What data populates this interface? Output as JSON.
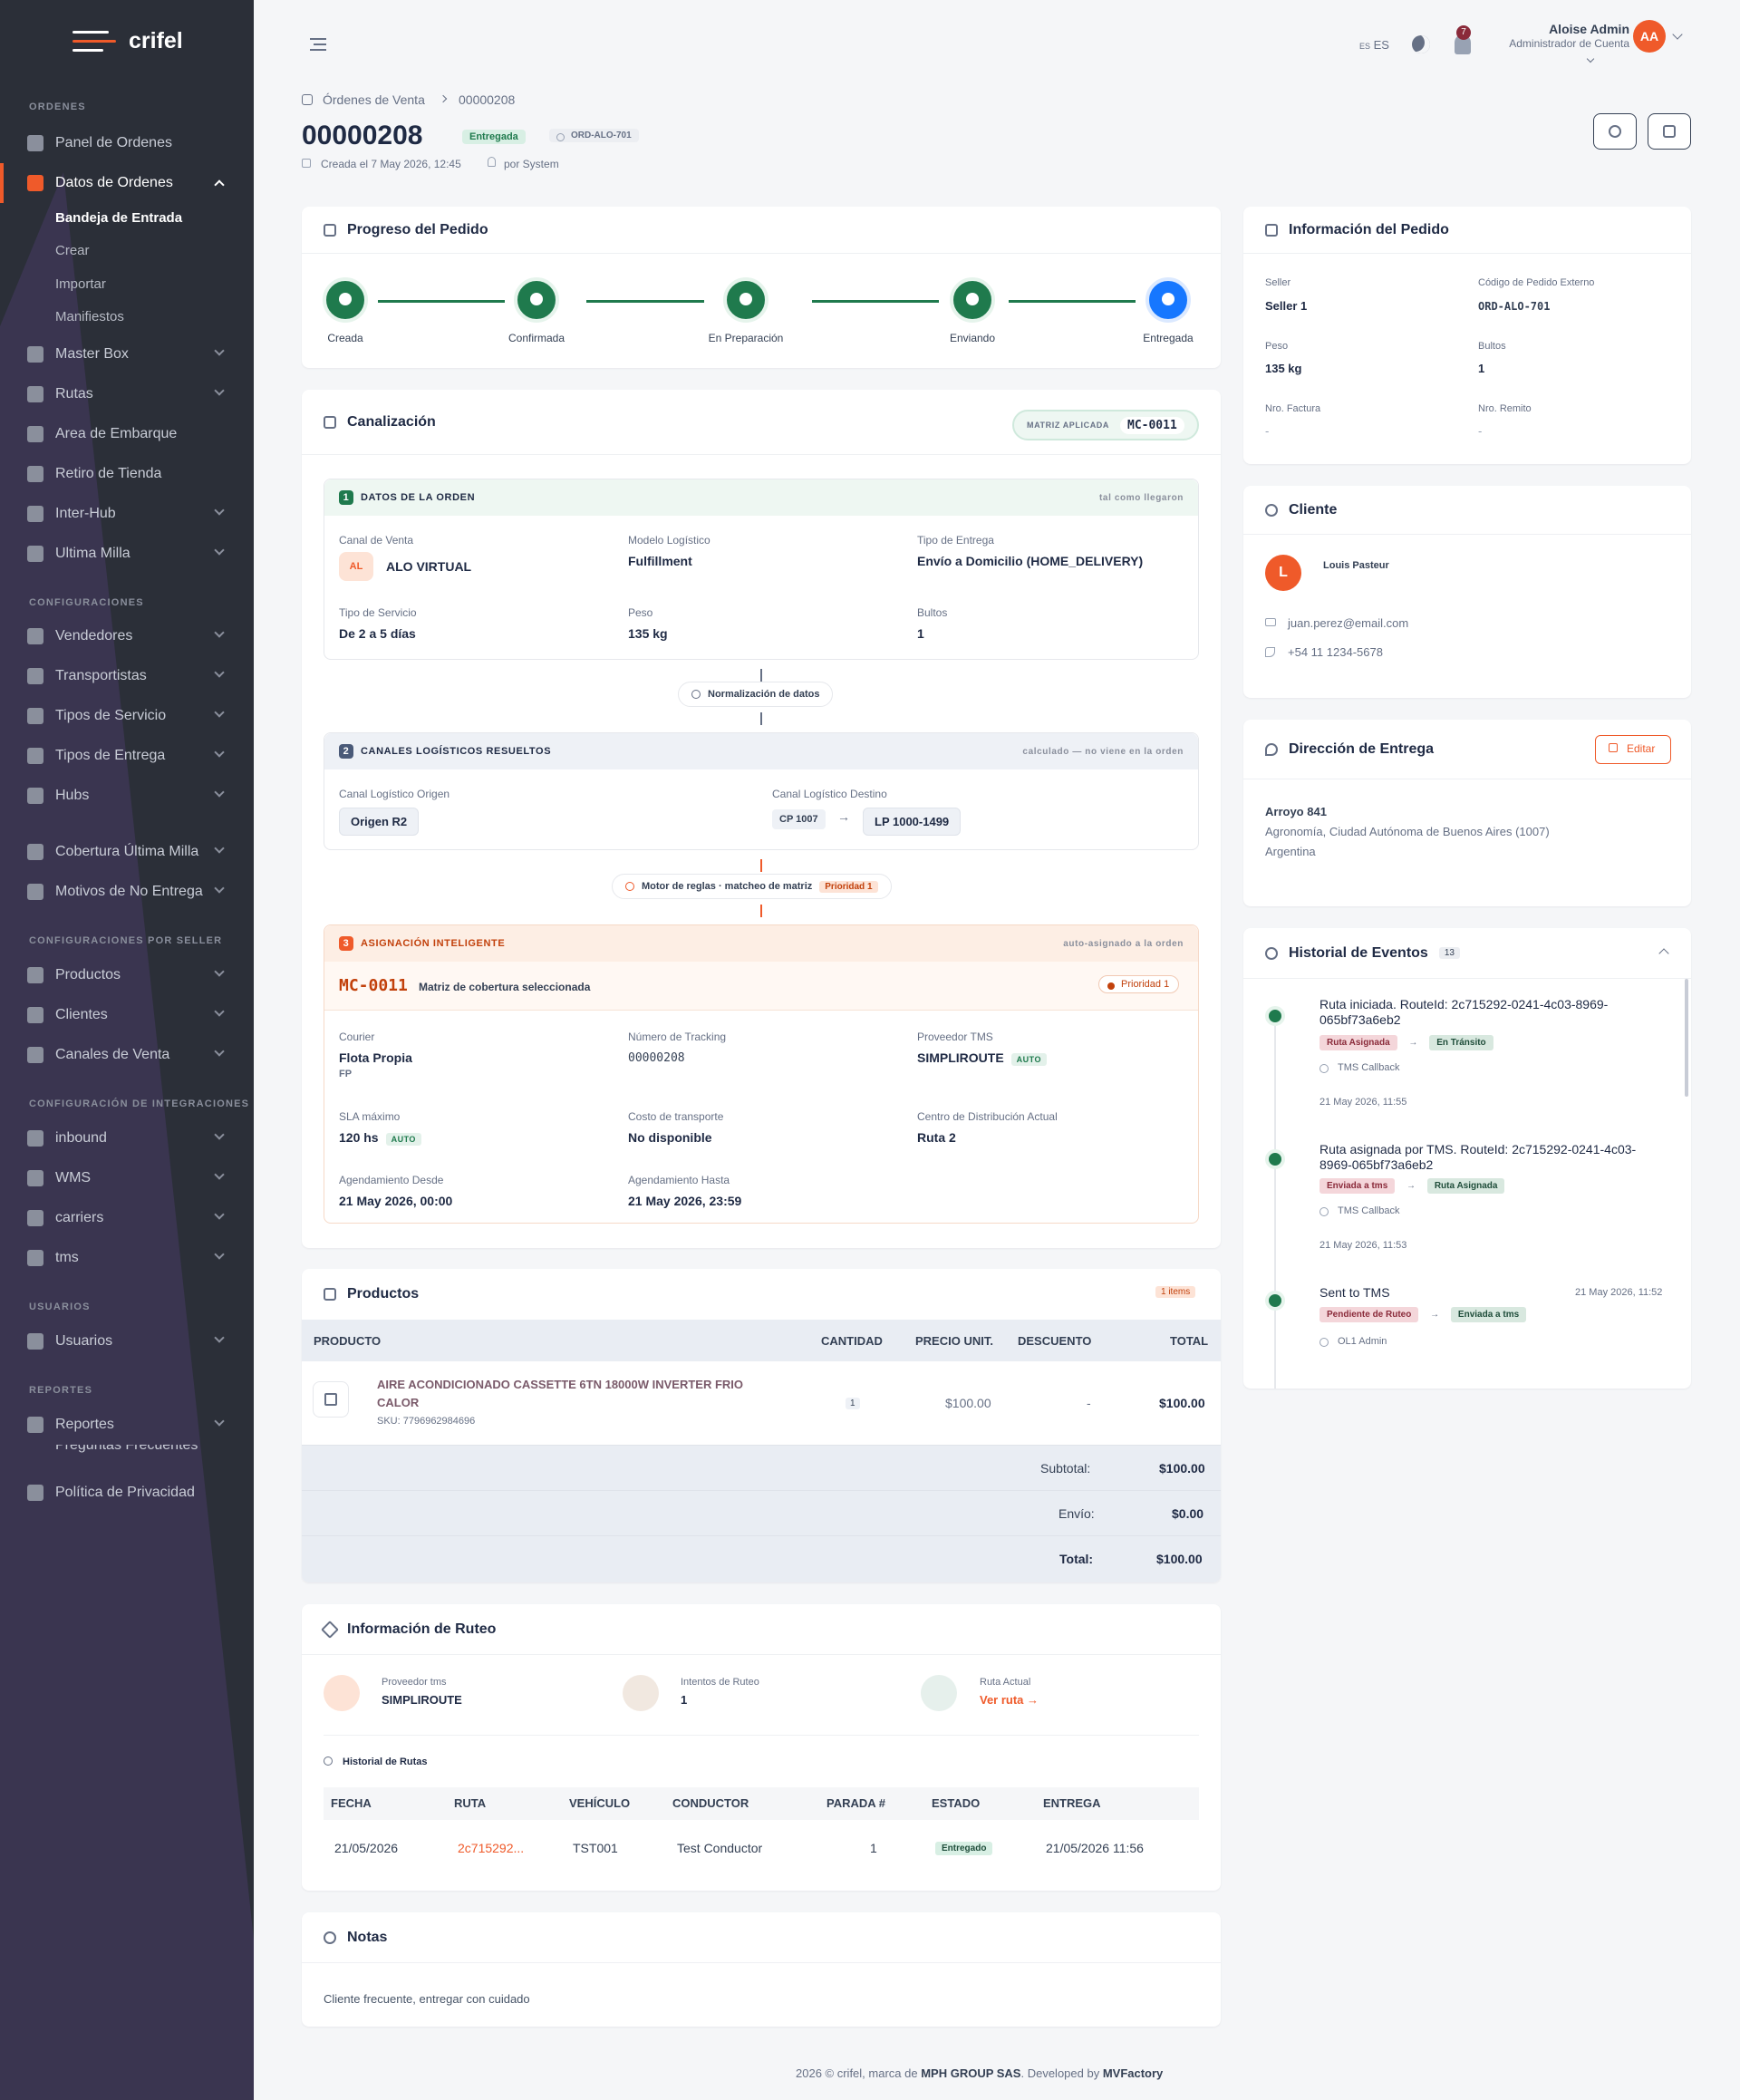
{
  "brand": {
    "name": "crifel",
    "accent": "#ef5a2a",
    "dark": "#2b2f38"
  },
  "sidebar": {
    "sections": [
      "ORDENES",
      "CONFIGURACIONES",
      "CONFIGURACIONES POR SELLER",
      "CONFIGURACIÓN DE INTEGRACIONES",
      "USUARIOS",
      "REPORTES"
    ],
    "items": [
      "Panel de Ordenes",
      "Datos de Ordenes",
      "Master Box",
      "Rutas",
      "Area de Embarque",
      "Retiro de Tienda",
      "Inter-Hub",
      "Ultima Milla",
      "Vendedores",
      "Transportistas",
      "Tipos de Servicio",
      "Tipos de Entrega",
      "Hubs",
      "Cobertura Última Milla",
      "Motivos de No Entrega",
      "Productos",
      "Clientes",
      "Canales de Venta",
      "inbound",
      "WMS",
      "carriers",
      "tms",
      "Usuarios",
      "Reportes",
      "Preguntas Frecuentes",
      "Política de Privacidad"
    ],
    "subitems": [
      "Bandeja de Entrada",
      "Crear",
      "Importar",
      "Manifiestos"
    ]
  },
  "topbar": {
    "lang": "ES",
    "lang_small": "ES",
    "notif_count": "7",
    "user_name": "Aloise Admin",
    "user_role": "Administrador de Cuenta",
    "avatar": "AA"
  },
  "breadcrumb": {
    "parent": "Órdenes de Venta",
    "current": "00000208"
  },
  "order": {
    "number": "00000208",
    "status": "Entregada",
    "ext_code": "ORD-ALO-701",
    "created": "Creada el 7 May 2026, 12:45",
    "by": "por System"
  },
  "progress": {
    "title": "Progreso del Pedido",
    "steps": [
      "Creada",
      "Confirmada",
      "En Preparación",
      "Enviando",
      "Entregada"
    ]
  },
  "canal": {
    "title": "Canalización",
    "matrix_label": "MATRIZ APLICADA",
    "matrix": "MC-0011",
    "b1": {
      "n": "1",
      "title": "DATOS DE LA ORDEN",
      "note": "tal como llegaron",
      "canal_label": "Canal de Venta",
      "canal_abbr": "AL",
      "canal": "ALO VIRTUAL",
      "modelo_label": "Modelo Logístico",
      "modelo": "Fulfillment",
      "tipo_label": "Tipo de Entrega",
      "tipo": "Envío a Domicilio (HOME_DELIVERY)",
      "servicio_label": "Tipo de Servicio",
      "servicio": "De 2 a 5 días",
      "peso_label": "Peso",
      "peso": "135 kg",
      "bultos_label": "Bultos",
      "bultos": "1"
    },
    "pill1": "Normalización de datos",
    "b2": {
      "n": "2",
      "title": "CANALES LOGÍSTICOS RESUELTOS",
      "note": "calculado — no viene en la orden",
      "origen_label": "Canal Logístico Origen",
      "origen": "Origen R2",
      "destino_label": "Canal Logístico Destino",
      "cp": "CP 1007",
      "destino": "LP 1000-1499"
    },
    "pill2": "Motor de reglas · matcheo de matriz",
    "pill2_badge": "Prioridad 1",
    "b3": {
      "n": "3",
      "title": "ASIGNACIÓN INTELIGENTE",
      "note": "auto-asignado a la orden",
      "matrix": "MC-0011",
      "matrix_desc": "Matriz de cobertura seleccionada",
      "priority": "Prioridad 1",
      "courier_label": "Courier",
      "courier": "Flota Propia",
      "courier_code": "FP",
      "tracking_label": "Número de Tracking",
      "tracking": "00000208",
      "tms_label": "Proveedor TMS",
      "tms": "SIMPLIROUTE",
      "auto": "AUTO",
      "sla_label": "SLA máximo",
      "sla": "120 hs",
      "costo_label": "Costo de transporte",
      "costo": "No disponible",
      "centro_label": "Centro de Distribución Actual",
      "centro": "Ruta 2",
      "desde_label": "Agendamiento Desde",
      "desde": "21 May 2026, 00:00",
      "hasta_label": "Agendamiento Hasta",
      "hasta": "21 May 2026, 23:59"
    }
  },
  "products": {
    "title": "Productos",
    "count": "1 items",
    "headers": [
      "PRODUCTO",
      "CANTIDAD",
      "PRECIO UNIT.",
      "DESCUENTO",
      "TOTAL"
    ],
    "rows": [
      {
        "name": "AIRE ACONDICIONADO CASSETTE 6TN 18000W INVERTER FRIO CALOR",
        "sku": "SKU: 7796962984696",
        "qty": "1",
        "price": "$100.00",
        "discount": "-",
        "total": "$100.00"
      }
    ],
    "subtotal_label": "Subtotal:",
    "subtotal": "$100.00",
    "envio_label": "Envío:",
    "envio": "$0.00",
    "total_label": "Total:",
    "total": "$100.00"
  },
  "routing": {
    "title": "Información de Ruteo",
    "prov_label": "Proveedor tms",
    "prov": "SIMPLIROUTE",
    "int_label": "Intentos de Ruteo",
    "int": "1",
    "ruta_label": "Ruta Actual",
    "ruta": "Ver ruta →",
    "hist_title": "Historial de Rutas",
    "headers": [
      "FECHA",
      "RUTA",
      "VEHÍCULO",
      "CONDUCTOR",
      "PARADA #",
      "ESTADO",
      "ENTREGA"
    ],
    "rows": [
      {
        "fecha": "21/05/2026",
        "ruta": "2c715292...",
        "vehiculo": "TST001",
        "conductor": "Test Conductor",
        "parada": "1",
        "estado": "Entregado",
        "entrega": "21/05/2026 11:56"
      }
    ]
  },
  "notes": {
    "title": "Notas",
    "text": "Cliente frecuente, entregar con cuidado"
  },
  "info": {
    "title": "Información del Pedido",
    "seller_label": "Seller",
    "seller": "Seller 1",
    "ext_label": "Código de Pedido Externo",
    "ext": "ORD-ALO-701",
    "peso_label": "Peso",
    "peso": "135 kg",
    "bultos_label": "Bultos",
    "bultos": "1",
    "fact_label": "Nro. Factura",
    "fact": "-",
    "rem_label": "Nro. Remito",
    "rem": "-"
  },
  "client": {
    "title": "Cliente",
    "initial": "L",
    "name": "Louis Pasteur",
    "email": "juan.perez@email.com",
    "phone": "+54 11 1234-5678"
  },
  "address": {
    "title": "Dirección de Entrega",
    "edit": "Editar",
    "line1": "Arroyo 841",
    "line2": "Agronomía, Ciudad Autónoma de Buenos Aires (1007)",
    "line3": "Argentina"
  },
  "events": {
    "title": "Historial de Eventos",
    "count": "13",
    "items": [
      {
        "title": "Ruta iniciada. RouteId: 2c715292-0241-4c03-8969-065bf73a6eb2",
        "from": "Ruta Asignada",
        "to": "En Tránsito",
        "source": "TMS Callback",
        "date": "21 May 2026, 11:55"
      },
      {
        "title": "Ruta asignada por TMS. RouteId: 2c715292-0241-4c03-8969-065bf73a6eb2",
        "from": "Enviada a tms",
        "to": "Ruta Asignada",
        "source": "TMS Callback",
        "date": "21 May 2026, 11:53"
      },
      {
        "title": "Sent to TMS",
        "from": "Pendiente de Ruteo",
        "to": "Enviada a tms",
        "source": "OL1 Admin",
        "date": "21 May 2026, 11:52"
      }
    ]
  },
  "footer": {
    "pre": "2026 © crifel, marca de ",
    "company": "MPH GROUP SAS",
    "mid": ". Developed by ",
    "dev": "MVFactory"
  }
}
